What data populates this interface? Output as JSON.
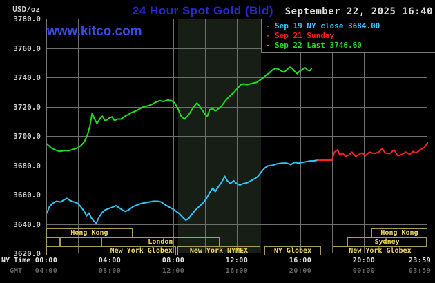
{
  "header": {
    "units_label": "USD/oz",
    "title": "24 Hour Spot Gold (Bid)",
    "datetime": "September 22, 2025 16:40",
    "watermark": "www.kitco.com"
  },
  "legend": {
    "bullet": "-",
    "items": [
      {
        "label": "Sep 19 NY close 3684.00",
        "color": "#2cc8ff"
      },
      {
        "label": "Sep 21 Sunday",
        "color": "#ff1f1f"
      },
      {
        "label": "Sep 22 Last 3746.60",
        "color": "#1fdd1f"
      }
    ]
  },
  "axes": {
    "y_tick_labels": [
      "3780.0",
      "3760.0",
      "3740.0",
      "3720.0",
      "3700.0",
      "3680.0",
      "3660.0",
      "3640.0",
      "3620.0"
    ],
    "y_tick_values": [
      3780,
      3760,
      3740,
      3720,
      3700,
      3680,
      3660,
      3640,
      3620
    ],
    "x_tick_hours": [
      0,
      4,
      8,
      12,
      16,
      20,
      23.983
    ],
    "x_rows": [
      {
        "name": "NY Time",
        "labels": [
          "00:00",
          "04:00",
          "08:00",
          "12:00",
          "16:00",
          "20:00",
          "23:59"
        ]
      },
      {
        "name": "GMT",
        "labels": [
          "04:00",
          "08:00",
          "12:00",
          "16:00",
          "20:00",
          "00:00",
          "03:59"
        ]
      }
    ]
  },
  "chart_data": {
    "type": "line",
    "title": "24 Hour Spot Gold (Bid)",
    "x_unit": "NY time (hours, 00:00-23:59)",
    "y_unit": "USD/oz",
    "ylim": [
      3620,
      3780
    ],
    "xlim_hours": [
      0,
      24
    ],
    "grid": {
      "x_step_hours": 2,
      "y_step": 20
    },
    "shaded_band_hours": {
      "start": 8.26,
      "end": 13.48
    },
    "series": [
      {
        "name": "Sep 19 NY close 3684.00",
        "color": "#2cc8ff",
        "points": [
          [
            0,
            3648
          ],
          [
            0.15,
            3652
          ],
          [
            0.35,
            3654.5
          ],
          [
            0.6,
            3656
          ],
          [
            0.85,
            3655.5
          ],
          [
            1.1,
            3657
          ],
          [
            1.25,
            3658
          ],
          [
            1.45,
            3656.5
          ],
          [
            1.7,
            3655.5
          ],
          [
            1.95,
            3654.5
          ],
          [
            2.15,
            3652
          ],
          [
            2.35,
            3649
          ],
          [
            2.5,
            3646
          ],
          [
            2.65,
            3648
          ],
          [
            2.8,
            3644.5
          ],
          [
            2.95,
            3642.5
          ],
          [
            3.1,
            3641
          ],
          [
            3.25,
            3644.5
          ],
          [
            3.45,
            3648
          ],
          [
            3.65,
            3650
          ],
          [
            3.9,
            3651
          ],
          [
            4.15,
            3652
          ],
          [
            4.35,
            3653
          ],
          [
            4.55,
            3651.5
          ],
          [
            4.75,
            3650
          ],
          [
            4.95,
            3649
          ],
          [
            5.2,
            3650.5
          ],
          [
            5.45,
            3652.5
          ],
          [
            5.7,
            3653.5
          ],
          [
            5.95,
            3654.5
          ],
          [
            6.2,
            3655
          ],
          [
            6.45,
            3655.5
          ],
          [
            6.7,
            3656
          ],
          [
            6.95,
            3656
          ],
          [
            7.2,
            3655.5
          ],
          [
            7.45,
            3653.5
          ],
          [
            7.7,
            3652
          ],
          [
            7.95,
            3650.5
          ],
          [
            8.15,
            3649
          ],
          [
            8.35,
            3647.5
          ],
          [
            8.55,
            3645
          ],
          [
            8.75,
            3643
          ],
          [
            8.95,
            3644.5
          ],
          [
            9.15,
            3647.5
          ],
          [
            9.35,
            3650
          ],
          [
            9.6,
            3652.5
          ],
          [
            9.85,
            3655
          ],
          [
            10.05,
            3658
          ],
          [
            10.25,
            3662
          ],
          [
            10.45,
            3665
          ],
          [
            10.6,
            3662.5
          ],
          [
            10.8,
            3666
          ],
          [
            11,
            3669
          ],
          [
            11.2,
            3673
          ],
          [
            11.35,
            3670
          ],
          [
            11.55,
            3668
          ],
          [
            11.75,
            3670
          ],
          [
            11.95,
            3668
          ],
          [
            12.15,
            3667
          ],
          [
            12.35,
            3668
          ],
          [
            12.6,
            3668.5
          ],
          [
            12.85,
            3670
          ],
          [
            13.1,
            3671.5
          ],
          [
            13.3,
            3673
          ],
          [
            13.5,
            3676
          ],
          [
            13.7,
            3678.5
          ],
          [
            13.9,
            3680
          ],
          [
            14.2,
            3680.5
          ],
          [
            14.5,
            3681.5
          ],
          [
            14.8,
            3682
          ],
          [
            15.1,
            3682
          ],
          [
            15.35,
            3681
          ],
          [
            15.6,
            3682.5
          ],
          [
            15.85,
            3682
          ],
          [
            16.1,
            3682.5
          ],
          [
            16.35,
            3683
          ],
          [
            16.6,
            3683.5
          ],
          [
            16.8,
            3683.5
          ],
          [
            17.05,
            3684
          ]
        ]
      },
      {
        "name": "Sep 21 Sunday",
        "color": "#ff1f1f",
        "points": [
          [
            17.05,
            3684
          ],
          [
            17.95,
            3684
          ],
          [
            18.1,
            3689.5
          ],
          [
            18.3,
            3691
          ],
          [
            18.45,
            3687.5
          ],
          [
            18.6,
            3689
          ],
          [
            18.8,
            3686.5
          ],
          [
            19,
            3687.5
          ],
          [
            19.2,
            3689.5
          ],
          [
            19.45,
            3686.5
          ],
          [
            19.65,
            3688
          ],
          [
            19.85,
            3689
          ],
          [
            20.05,
            3687
          ],
          [
            20.3,
            3689.5
          ],
          [
            20.6,
            3688.5
          ],
          [
            20.9,
            3689.5
          ],
          [
            21.1,
            3692
          ],
          [
            21.3,
            3689
          ],
          [
            21.6,
            3688.5
          ],
          [
            21.85,
            3691
          ],
          [
            22.1,
            3687
          ],
          [
            22.35,
            3688
          ],
          [
            22.6,
            3689.5
          ],
          [
            22.85,
            3688
          ],
          [
            23.05,
            3690
          ],
          [
            23.25,
            3689
          ],
          [
            23.5,
            3691
          ],
          [
            23.75,
            3692.5
          ],
          [
            23.98,
            3696
          ]
        ]
      },
      {
        "name": "Sep 22 Last 3746.60",
        "color": "#1fdd1f",
        "points": [
          [
            0,
            3695
          ],
          [
            0.25,
            3692.5
          ],
          [
            0.5,
            3691
          ],
          [
            0.8,
            3690
          ],
          [
            1.1,
            3690.5
          ],
          [
            1.4,
            3690.5
          ],
          [
            1.7,
            3691.5
          ],
          [
            1.95,
            3692.5
          ],
          [
            2.15,
            3694
          ],
          [
            2.35,
            3696.5
          ],
          [
            2.55,
            3701
          ],
          [
            2.7,
            3707
          ],
          [
            2.85,
            3716
          ],
          [
            3,
            3712
          ],
          [
            3.15,
            3709
          ],
          [
            3.35,
            3712.5
          ],
          [
            3.5,
            3714
          ],
          [
            3.65,
            3711
          ],
          [
            3.8,
            3711.5
          ],
          [
            3.95,
            3713
          ],
          [
            4.1,
            3713.5
          ],
          [
            4.25,
            3711
          ],
          [
            4.45,
            3712
          ],
          [
            4.65,
            3712
          ],
          [
            4.85,
            3713.5
          ],
          [
            5.1,
            3715
          ],
          [
            5.35,
            3716.5
          ],
          [
            5.6,
            3717.5
          ],
          [
            5.85,
            3719
          ],
          [
            6.1,
            3720.5
          ],
          [
            6.35,
            3721
          ],
          [
            6.6,
            3722
          ],
          [
            6.85,
            3723.5
          ],
          [
            7.1,
            3724.5
          ],
          [
            7.35,
            3724
          ],
          [
            7.6,
            3725
          ],
          [
            7.85,
            3724.5
          ],
          [
            8.05,
            3723
          ],
          [
            8.25,
            3719
          ],
          [
            8.45,
            3714
          ],
          [
            8.65,
            3712
          ],
          [
            8.85,
            3714
          ],
          [
            9.05,
            3717
          ],
          [
            9.25,
            3720.5
          ],
          [
            9.45,
            3723
          ],
          [
            9.6,
            3721
          ],
          [
            9.75,
            3718.5
          ],
          [
            9.95,
            3715.5
          ],
          [
            10.1,
            3714
          ],
          [
            10.25,
            3718.5
          ],
          [
            10.45,
            3719
          ],
          [
            10.6,
            3717.5
          ],
          [
            10.8,
            3719
          ],
          [
            11,
            3721
          ],
          [
            11.2,
            3724
          ],
          [
            11.4,
            3726.5
          ],
          [
            11.6,
            3728.5
          ],
          [
            11.8,
            3730.5
          ],
          [
            12,
            3733
          ],
          [
            12.2,
            3735.5
          ],
          [
            12.4,
            3736
          ],
          [
            12.6,
            3735.5
          ],
          [
            12.8,
            3736
          ],
          [
            13,
            3736.5
          ],
          [
            13.2,
            3737
          ],
          [
            13.4,
            3738.5
          ],
          [
            13.6,
            3740
          ],
          [
            13.8,
            3742
          ],
          [
            14,
            3743.5
          ],
          [
            14.2,
            3745.5
          ],
          [
            14.4,
            3746.5
          ],
          [
            14.6,
            3746
          ],
          [
            14.8,
            3744.5
          ],
          [
            14.95,
            3744
          ],
          [
            15.1,
            3745.5
          ],
          [
            15.3,
            3747.5
          ],
          [
            15.45,
            3746.5
          ],
          [
            15.6,
            3744.5
          ],
          [
            15.75,
            3743
          ],
          [
            15.9,
            3744.5
          ],
          [
            16.1,
            3746
          ],
          [
            16.25,
            3747
          ],
          [
            16.4,
            3745.5
          ],
          [
            16.55,
            3745
          ],
          [
            16.67,
            3746.6
          ]
        ]
      }
    ]
  },
  "sessions": {
    "rows": [
      {
        "row": 1,
        "boxes": [
          {
            "label": "Hong Kong",
            "start": 0,
            "end": 5.43
          },
          {
            "label": "Hong Kong",
            "start": 20.48,
            "end": 24
          }
        ]
      },
      {
        "row": 2,
        "boxes": [
          {
            "label": "",
            "start": 0,
            "end": 0.87
          },
          {
            "label": "",
            "start": 0.87,
            "end": 3.48
          },
          {
            "label": "London",
            "start": 3.48,
            "end": 10.9
          },
          {
            "label": "Sydney",
            "start": 18.96,
            "end": 23.96
          }
        ]
      },
      {
        "row": 3,
        "boxes": [
          {
            "label": "New York Globex",
            "start": 0,
            "end": 8.17,
            "align": "right"
          },
          {
            "label": "New York NYMEX",
            "start": 8.26,
            "end": 13.48
          },
          {
            "label": "NY Globex",
            "start": 13.74,
            "end": 17.3
          },
          {
            "label": "New York Globex",
            "start": 18.04,
            "end": 24
          }
        ]
      }
    ]
  }
}
